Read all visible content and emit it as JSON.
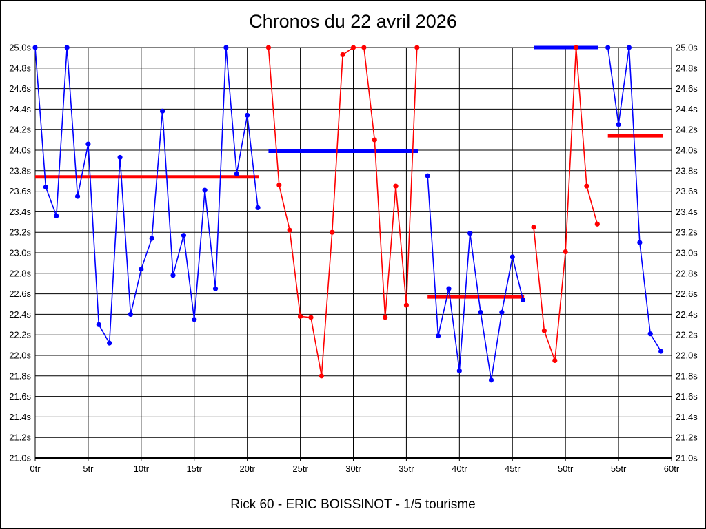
{
  "header": {
    "title": "Chronos du 22 avril 2026"
  },
  "footer": {
    "subtitle": "Rick 60 - ERIC BOISSINOT - 1/5 tourisme"
  },
  "colors": {
    "blue_series": "#0000ff",
    "red_series": "#ff0000",
    "grid": "#000000",
    "background": "#ffffff"
  },
  "chart_data": {
    "type": "line",
    "title": "Chronos du 22 avril 2026",
    "subtitle": "Rick 60 - ERIC BOISSINOT - 1/5 tourisme",
    "xlim": [
      0,
      60
    ],
    "ylim": [
      21.0,
      25.0
    ],
    "x_tick_step": 5,
    "y_tick_step": 0.2,
    "x_unit": "tr",
    "y_unit": "s",
    "grid": true,
    "legend_position": "none",
    "x_tick_labels": [
      "0tr",
      "5tr",
      "10tr",
      "15tr",
      "20tr",
      "25tr",
      "30tr",
      "35tr",
      "40tr",
      "45tr",
      "50tr",
      "55tr",
      "60tr"
    ],
    "y_tick_labels": [
      "25.0s",
      "24.8s",
      "24.6s",
      "24.4s",
      "24.2s",
      "24.0s",
      "23.8s",
      "23.6s",
      "23.4s",
      "23.2s",
      "23.0s",
      "22.8s",
      "22.6s",
      "22.4s",
      "22.2s",
      "22.0s",
      "21.8s",
      "21.6s",
      "21.4s",
      "21.2s",
      "21.0s"
    ],
    "series": [
      {
        "name": "stint-1-blue",
        "color": "#0000ff",
        "x_start": 0,
        "values": [
          25.0,
          23.64,
          23.36,
          25.0,
          23.55,
          24.06,
          22.3,
          22.12,
          23.93,
          22.4,
          22.84,
          23.14,
          24.38,
          22.78,
          23.17,
          22.35,
          23.61,
          22.65,
          25.0,
          23.77,
          24.34,
          23.44
        ]
      },
      {
        "name": "stint-2-red",
        "color": "#ff0000",
        "x_start": 22,
        "values": [
          25.0,
          23.66,
          23.22,
          22.38,
          22.37,
          21.8,
          23.2,
          24.93,
          25.0,
          25.0,
          24.1,
          22.37,
          23.65,
          22.49,
          25.0
        ]
      },
      {
        "name": "stint-3-blue",
        "color": "#0000ff",
        "x_start": 37,
        "values": [
          23.75,
          22.19,
          22.65,
          21.85,
          23.19,
          22.42,
          21.76,
          22.42,
          22.96,
          22.54
        ]
      },
      {
        "name": "stint-4-red",
        "color": "#ff0000",
        "x_start": 47,
        "values": [
          23.25,
          22.24,
          21.95,
          23.01,
          25.0,
          23.65,
          23.28
        ]
      },
      {
        "name": "stint-5-blue",
        "color": "#0000ff",
        "x_start": 54,
        "values": [
          25.0,
          24.25,
          25.0,
          23.1,
          22.21,
          22.04
        ]
      }
    ],
    "average_lines": [
      {
        "x1": 0,
        "x2": 21.1,
        "y": 23.74,
        "color": "#ff0000"
      },
      {
        "x1": 22,
        "x2": 36.1,
        "y": 23.99,
        "color": "#0000ff"
      },
      {
        "x1": 37,
        "x2": 46.1,
        "y": 22.57,
        "color": "#ff0000"
      },
      {
        "x1": 47,
        "x2": 53.1,
        "y": 25.0,
        "color": "#0000ff"
      },
      {
        "x1": 54,
        "x2": 59.2,
        "y": 24.14,
        "color": "#ff0000"
      }
    ]
  }
}
